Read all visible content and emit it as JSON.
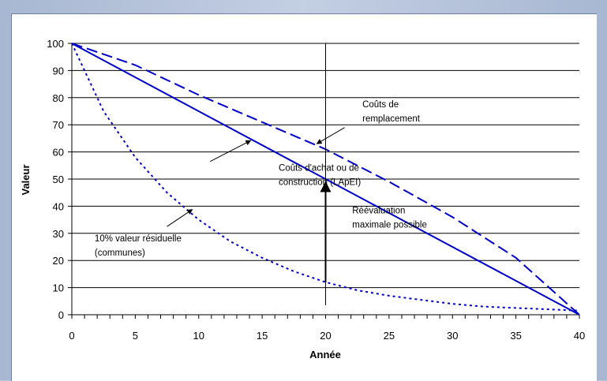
{
  "chart_data": {
    "type": "line",
    "title": "",
    "xlabel": "Année",
    "ylabel": "Valeur",
    "xlim": [
      0,
      40
    ],
    "ylim": [
      0,
      100
    ],
    "x_ticks": [
      0,
      5,
      10,
      15,
      20,
      25,
      30,
      35,
      40
    ],
    "y_ticks": [
      0,
      10,
      20,
      30,
      40,
      50,
      60,
      70,
      80,
      90,
      100
    ],
    "grid": "horizontal",
    "series": [
      {
        "name": "Coûts d'achat ou de construction (LApEI)",
        "style": "solid",
        "color": "#0000cc",
        "x": [
          0,
          40
        ],
        "y": [
          100,
          0
        ]
      },
      {
        "name": "Coûts de remplacement",
        "style": "dashed",
        "color": "#0000cc",
        "x": [
          0,
          5,
          10,
          15,
          20,
          25,
          30,
          35,
          40
        ],
        "y": [
          100,
          92,
          81,
          71,
          61,
          49,
          36,
          21,
          0
        ]
      },
      {
        "name": "10% valeur résiduelle (communes)",
        "style": "dotted",
        "color": "#0000cc",
        "x": [
          0,
          2.5,
          5,
          7.5,
          10,
          12.5,
          15,
          17.5,
          20,
          22.5,
          25,
          27.5,
          30,
          32.5,
          35,
          37.5,
          40
        ],
        "y": [
          100,
          75,
          58,
          45,
          35,
          27,
          21,
          16,
          12,
          9,
          7,
          5.5,
          4,
          3,
          2.5,
          2,
          1.5
        ]
      }
    ],
    "vertical_line": {
      "x": 20
    },
    "revaluation_arrow": {
      "x": 20,
      "from": 12,
      "to": 50
    },
    "annotations": [
      {
        "id": "remplacement",
        "lines": [
          "Coûts de",
          "remplacement"
        ],
        "text_at": [
          22.9,
          76.5
        ],
        "arrow_from": [
          21.5,
          69
        ],
        "arrow_to": [
          19.3,
          63
        ]
      },
      {
        "id": "achat",
        "lines": [
          "Coûts d'achat ou de",
          "construction (LApEI)"
        ],
        "text_at": [
          16.3,
          53
        ],
        "arrow_from": [
          10.9,
          56.5
        ],
        "arrow_to": [
          14.1,
          64.2
        ]
      },
      {
        "id": "reevaluation",
        "lines": [
          "Réévaluation",
          "maximale possible"
        ],
        "text_at": [
          22.1,
          37.4
        ]
      },
      {
        "id": "residuelle",
        "lines": [
          "10% valeur résiduelle",
          "(communes)"
        ],
        "text_at": [
          1.8,
          27
        ],
        "arrow_from": [
          7.5,
          32.5
        ],
        "arrow_to": [
          9.5,
          38.8
        ]
      }
    ]
  }
}
